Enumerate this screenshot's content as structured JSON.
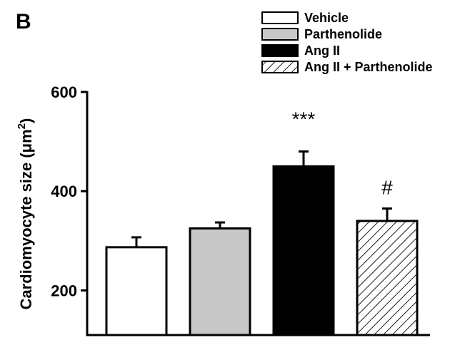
{
  "panel_letter": "B",
  "colors": {
    "vehicle": "#ffffff",
    "parthenolide": "#c8c8c8",
    "ang_ii": "#000000",
    "ang_ii_parthenolide": "hatched",
    "axis": "#000000"
  },
  "chart_data": {
    "type": "bar",
    "categories": [
      "Vehicle",
      "Parthenolide",
      "Ang II",
      "Ang II + Parthenolide"
    ],
    "values": [
      287,
      325,
      450,
      340
    ],
    "errors": [
      20,
      12,
      30,
      25
    ],
    "fills": [
      "white",
      "lightgray",
      "black",
      "hatched"
    ],
    "annotations": [
      "",
      "",
      "***",
      "#"
    ],
    "title": "",
    "xlabel": "",
    "ylabel": "Cardiomyocyte size (μm",
    "ylabel_superscript": "2",
    "ylabel_close": ")",
    "ylim": [
      110,
      600
    ],
    "yticks": [
      200,
      400,
      600
    ],
    "ytick_labels": [
      "200",
      "400",
      "600"
    ],
    "grid": false,
    "legend": {
      "placement": "top-right",
      "entries": [
        "Vehicle",
        "Parthenolide",
        "Ang II",
        "Ang II + Parthenolide"
      ]
    }
  }
}
